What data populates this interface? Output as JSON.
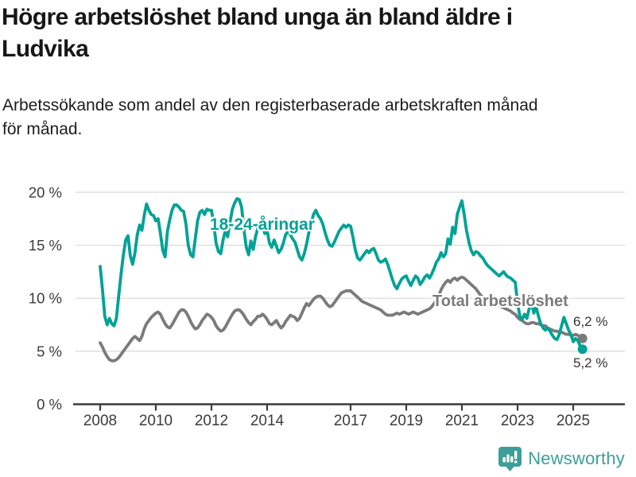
{
  "header": {
    "title": "Högre arbetslöshet bland unga än bland äldre i\nLudvika",
    "subtitle": "Arbetssökande som andel av den registerbaserade arbetskraften månad\nför månad."
  },
  "footer": {
    "brand": "Newsworthy",
    "logo_icon": "bar-chart-speech-bubble-icon"
  },
  "colors": {
    "young": "#00a296",
    "total": "#7b7b7b",
    "axis": "#3b3b3b",
    "grid": "#dcdcdc",
    "brand": "#3d9f97"
  },
  "chart_data": {
    "type": "line",
    "title": "Högre arbetslöshet bland unga än bland äldre i Ludvika",
    "subtitle": "Arbetssökande som andel av den registerbaserade arbetskraften månad för månad.",
    "x": {
      "start": "2008-01",
      "end": "2025-05",
      "interval": "month"
    },
    "x_ticks": [
      2008,
      2010,
      2012,
      2014,
      2017,
      2019,
      2021,
      2023,
      2025
    ],
    "y_ticks": [
      {
        "value": 0,
        "label": "0 %"
      },
      {
        "value": 5,
        "label": "5 %"
      },
      {
        "value": 10,
        "label": "10 %"
      },
      {
        "value": 15,
        "label": "15 %"
      },
      {
        "value": 20,
        "label": "20 %"
      }
    ],
    "ylim": [
      0,
      20
    ],
    "grid": true,
    "legend_position": "inline-annotations",
    "series": [
      {
        "name": "18-24-åringar",
        "color": "#00a296",
        "end_label": "5,2 %",
        "end_value": 5.2,
        "values": [
          13.0,
          10.8,
          8.3,
          7.5,
          8.1,
          7.6,
          7.4,
          8.1,
          10.2,
          12.3,
          14.1,
          15.5,
          15.9,
          14.0,
          13.2,
          14.3,
          16.0,
          16.9,
          16.4,
          17.8,
          18.9,
          18.3,
          17.9,
          17.8,
          17.3,
          17.5,
          16.1,
          14.5,
          13.9,
          16.3,
          17.4,
          18.3,
          18.8,
          18.8,
          18.6,
          18.3,
          18.2,
          17.0,
          15.0,
          14.1,
          13.9,
          15.6,
          17.3,
          18.1,
          18.3,
          17.9,
          18.4,
          18.3,
          18.3,
          17.0,
          15.2,
          14.4,
          14.2,
          15.5,
          16.4,
          15.8,
          17.2,
          18.4,
          19.0,
          19.4,
          19.3,
          18.6,
          16.5,
          14.8,
          14.1,
          15.4,
          14.6,
          15.8,
          16.6,
          17.3,
          16.8,
          16.1,
          16.4,
          15.2,
          14.8,
          15.5,
          14.9,
          14.3,
          14.6,
          15.2,
          16.0,
          16.3,
          16.0,
          15.6,
          15.3,
          14.6,
          13.9,
          13.6,
          14.2,
          15.1,
          16.2,
          17.0,
          17.9,
          18.3,
          17.8,
          17.5,
          17.0,
          16.2,
          15.5,
          15.0,
          14.9,
          15.3,
          15.8,
          16.3,
          16.6,
          16.9,
          16.7,
          16.9,
          16.8,
          15.8,
          14.6,
          13.8,
          13.6,
          13.9,
          14.2,
          14.5,
          14.3,
          14.6,
          14.7,
          14.2,
          13.6,
          13.4,
          13.5,
          13.7,
          13.2,
          12.5,
          11.8,
          11.2,
          10.9,
          11.4,
          11.8,
          12.0,
          12.1,
          11.6,
          11.2,
          11.7,
          12.1,
          11.9,
          11.3,
          11.6,
          12.0,
          12.2,
          11.9,
          12.3,
          12.8,
          13.4,
          13.7,
          14.3,
          13.9,
          14.2,
          15.6,
          15.1,
          16.7,
          16.1,
          17.9,
          18.6,
          19.2,
          17.9,
          16.4,
          15.3,
          14.5,
          14.1,
          14.4,
          14.3,
          14.0,
          13.8,
          13.4,
          13.1,
          12.9,
          12.7,
          12.5,
          12.3,
          12.1,
          12.3,
          12.5,
          12.2,
          12.0,
          11.9,
          11.7,
          11.5,
          9.6,
          8.3,
          8.0,
          8.5,
          8.1,
          9.0,
          9.7,
          8.6,
          9.2,
          8.3,
          7.6,
          7.2,
          7.0,
          7.2,
          6.9,
          6.5,
          6.2,
          6.1,
          6.6,
          7.4,
          8.2,
          7.6,
          7.0,
          6.6,
          5.9,
          6.2,
          6.0,
          5.5,
          5.2
        ]
      },
      {
        "name": "Total arbetslöshet",
        "color": "#7b7b7b",
        "end_label": "6,2 %",
        "end_value": 6.2,
        "values": [
          5.8,
          5.4,
          4.9,
          4.5,
          4.2,
          4.1,
          4.1,
          4.2,
          4.4,
          4.7,
          5.0,
          5.3,
          5.6,
          5.9,
          6.2,
          6.4,
          6.2,
          6.0,
          6.4,
          7.1,
          7.6,
          7.9,
          8.2,
          8.4,
          8.6,
          8.7,
          8.5,
          8.0,
          7.6,
          7.3,
          7.2,
          7.5,
          7.9,
          8.3,
          8.7,
          8.9,
          8.9,
          8.7,
          8.3,
          7.8,
          7.4,
          7.1,
          7.2,
          7.5,
          7.9,
          8.2,
          8.5,
          8.4,
          8.2,
          7.9,
          7.4,
          7.1,
          6.9,
          7.0,
          7.3,
          7.7,
          8.1,
          8.5,
          8.8,
          8.9,
          8.9,
          8.7,
          8.4,
          8.0,
          7.7,
          7.5,
          7.8,
          8.0,
          8.3,
          8.3,
          8.5,
          8.3,
          8.0,
          7.6,
          7.5,
          7.7,
          7.9,
          7.5,
          7.2,
          7.4,
          7.8,
          8.1,
          8.4,
          8.3,
          8.2,
          7.9,
          8.1,
          8.6,
          9.1,
          9.5,
          9.3,
          9.6,
          9.9,
          10.1,
          10.2,
          10.2,
          10.0,
          9.7,
          9.4,
          9.2,
          9.3,
          9.6,
          9.9,
          10.2,
          10.5,
          10.6,
          10.7,
          10.7,
          10.7,
          10.5,
          10.3,
          10.1,
          9.9,
          9.7,
          9.6,
          9.5,
          9.4,
          9.3,
          9.2,
          9.1,
          9.0,
          8.9,
          8.7,
          8.5,
          8.4,
          8.4,
          8.4,
          8.5,
          8.6,
          8.5,
          8.6,
          8.7,
          8.6,
          8.5,
          8.6,
          8.7,
          8.6,
          8.5,
          8.6,
          8.7,
          8.8,
          8.9,
          9.0,
          9.2,
          9.5,
          9.8,
          10.2,
          10.8,
          11.2,
          11.5,
          11.7,
          11.5,
          11.8,
          11.9,
          11.7,
          11.9,
          12.0,
          11.9,
          11.7,
          11.5,
          11.3,
          11.1,
          10.9,
          10.6,
          10.3,
          10.1,
          10.0,
          9.9,
          9.8,
          9.7,
          9.6,
          9.4,
          9.3,
          9.2,
          9.1,
          9.0,
          8.9,
          8.8,
          8.6,
          8.5,
          8.2,
          8.0,
          7.9,
          7.7,
          7.6,
          7.6,
          7.7,
          7.7,
          7.6,
          7.6,
          7.5,
          7.4,
          7.4,
          7.2,
          7.1,
          7.0,
          6.9,
          6.9,
          6.8,
          6.8,
          6.7,
          6.6,
          6.6,
          6.5,
          6.5,
          6.6,
          6.5,
          6.4,
          6.2
        ]
      }
    ]
  }
}
